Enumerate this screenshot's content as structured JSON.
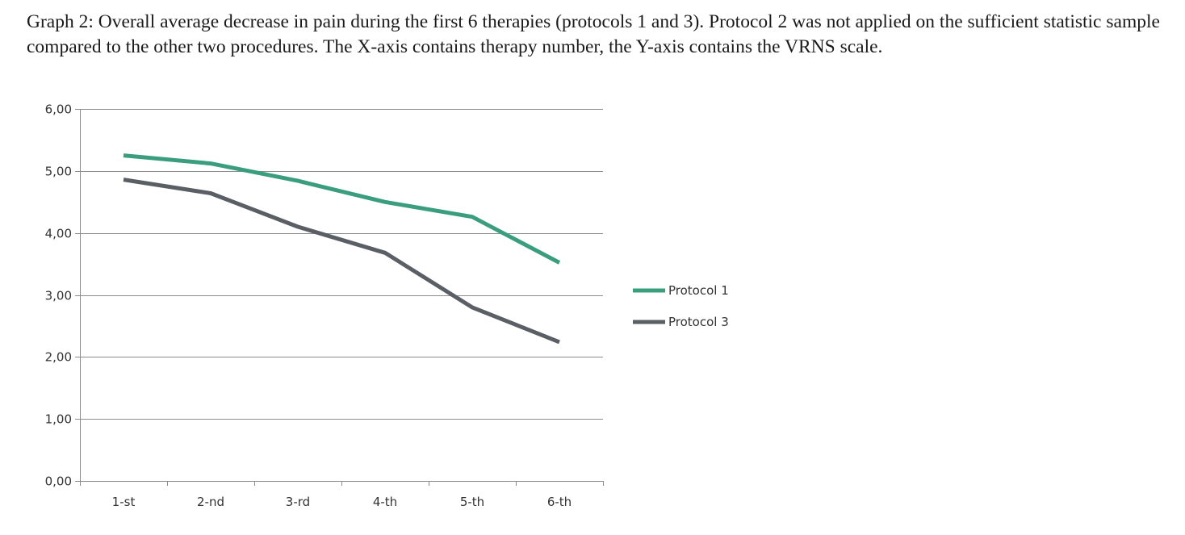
{
  "caption": "Graph 2: Overall average decrease in pain during the first 6 therapies (protocols 1 and 3). Protocol 2 was not applied on the sufficient statistic sample compared to the other two procedures. The  X-axis contains therapy number, the Y-axis contains the VRNS scale.",
  "chart_data": {
    "type": "line",
    "categories": [
      "1-st",
      "2-nd",
      "3-rd",
      "4-th",
      "5-th",
      "6-th"
    ],
    "series": [
      {
        "name": "Protocol 1",
        "color": "#3a9e7e",
        "values": [
          5.25,
          5.12,
          4.84,
          4.5,
          4.26,
          3.52
        ]
      },
      {
        "name": "Protocol 3",
        "color": "#5a5f66",
        "values": [
          4.86,
          4.64,
          4.1,
          3.68,
          2.8,
          2.24
        ]
      }
    ],
    "y_ticks": [
      "0,00",
      "1,00",
      "2,00",
      "3,00",
      "4,00",
      "5,00",
      "6,00"
    ],
    "ylim": [
      0,
      6
    ],
    "grid": true,
    "legend_position": "right"
  }
}
